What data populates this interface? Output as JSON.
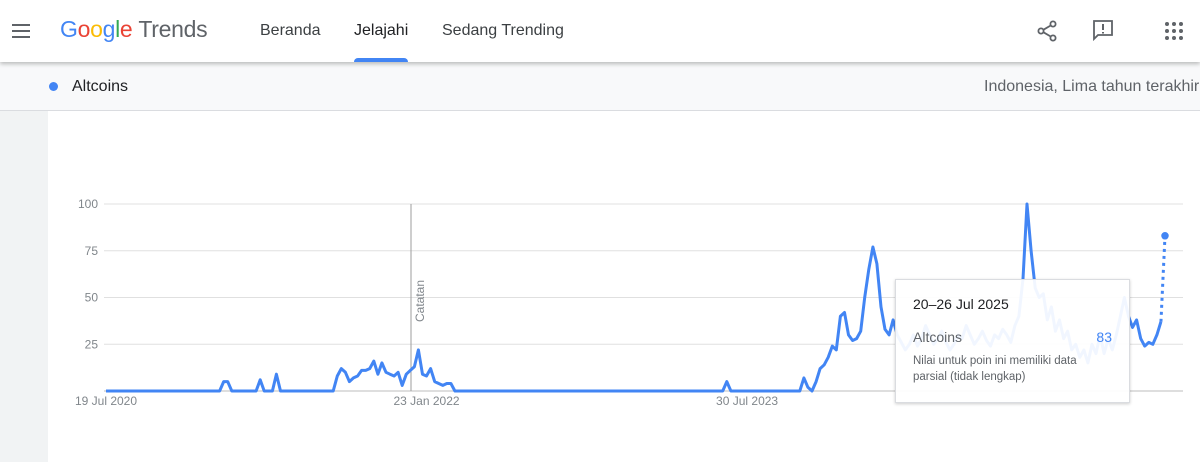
{
  "header": {
    "logo": "Google",
    "product": "Trends",
    "nav": [
      "Beranda",
      "Jelajahi",
      "Sedang Trending"
    ],
    "active_nav": 1
  },
  "subheader": {
    "region": "Indonesia, Lima tahun terakhir"
  },
  "chart_data": {
    "type": "line",
    "categories": [
      "19 Jul 2020",
      null,
      null,
      null,
      null,
      null,
      null,
      null,
      null,
      null,
      null,
      null,
      null,
      null,
      null,
      null,
      null,
      null,
      null,
      null,
      null,
      null,
      null,
      null,
      null,
      null,
      null,
      null,
      null,
      null,
      null,
      null,
      null,
      null,
      null,
      null,
      null,
      null,
      null,
      null,
      null,
      null,
      null,
      null,
      null,
      null,
      null,
      null,
      null,
      null,
      null,
      null,
      null,
      null,
      null,
      null,
      null,
      null,
      null,
      null,
      null,
      null,
      null,
      null,
      null,
      null,
      null,
      null,
      null,
      null,
      null,
      null,
      null,
      null,
      null,
      null,
      null,
      null,
      null,
      "23 Jan 2022",
      null,
      null,
      null,
      null,
      null,
      null,
      null,
      null,
      null,
      null,
      null,
      null,
      null,
      null,
      null,
      null,
      null,
      null,
      null,
      null,
      null,
      null,
      null,
      null,
      null,
      null,
      null,
      null,
      null,
      null,
      null,
      null,
      null,
      null,
      null,
      null,
      null,
      null,
      null,
      null,
      null,
      null,
      null,
      null,
      null,
      null,
      null,
      null,
      null,
      null,
      null,
      null,
      null,
      null,
      null,
      null,
      null,
      null,
      null,
      null,
      null,
      null,
      null,
      null,
      null,
      null,
      null,
      null,
      null,
      null,
      null,
      null,
      null,
      null,
      null,
      null,
      null,
      null,
      "30 Jul 2023",
      null,
      null,
      null,
      null,
      null,
      null,
      null,
      null,
      null,
      null,
      null,
      null,
      null,
      null,
      null,
      null,
      null,
      null,
      null,
      null,
      null,
      null,
      null,
      null,
      null,
      null,
      null,
      null,
      null,
      null,
      null,
      null,
      null,
      null,
      null,
      null,
      null,
      null,
      null,
      null,
      null,
      null,
      null,
      null,
      null,
      null,
      null,
      null,
      null,
      null,
      null,
      null,
      null,
      null,
      null,
      null,
      null,
      null,
      null,
      null,
      null,
      null,
      null,
      null,
      null,
      null,
      null,
      null,
      null,
      null,
      null,
      null,
      null,
      null,
      null,
      null,
      null,
      null,
      null,
      null,
      null,
      null,
      null,
      null,
      null,
      null,
      null,
      null,
      null,
      null,
      null,
      null,
      null,
      null,
      null,
      null,
      null,
      null,
      null,
      null,
      null,
      null,
      null
    ],
    "series": [
      {
        "name": "Altcoins",
        "color": "#4285f4",
        "values": [
          0,
          0,
          0,
          0,
          0,
          0,
          0,
          0,
          0,
          0,
          0,
          0,
          0,
          0,
          0,
          0,
          0,
          0,
          0,
          0,
          0,
          0,
          0,
          0,
          0,
          0,
          0,
          0,
          0,
          5,
          5,
          0,
          0,
          0,
          0,
          0,
          0,
          0,
          6,
          0,
          0,
          0,
          9,
          0,
          0,
          0,
          0,
          0,
          0,
          0,
          0,
          0,
          0,
          0,
          0,
          0,
          0,
          8,
          12,
          10,
          5,
          7,
          8,
          11,
          11,
          12,
          16,
          9,
          15,
          10,
          9,
          8,
          10,
          3,
          9,
          11,
          13,
          22,
          9,
          8,
          12,
          5,
          4,
          3,
          4,
          4,
          0,
          0,
          0,
          0,
          0,
          0,
          0,
          0,
          0,
          0,
          0,
          0,
          0,
          0,
          0,
          0,
          0,
          0,
          0,
          0,
          0,
          0,
          0,
          0,
          0,
          0,
          0,
          0,
          0,
          0,
          0,
          0,
          0,
          0,
          0,
          0,
          0,
          0,
          0,
          0,
          0,
          0,
          0,
          0,
          0,
          0,
          0,
          0,
          0,
          0,
          0,
          0,
          0,
          0,
          0,
          0,
          0,
          0,
          0,
          0,
          0,
          0,
          0,
          0,
          0,
          0,
          0,
          5,
          0,
          0,
          0,
          0,
          0,
          0,
          0,
          0,
          0,
          0,
          0,
          0,
          0,
          0,
          0,
          0,
          0,
          0,
          7,
          2,
          0,
          5,
          12,
          14,
          18,
          24,
          22,
          40,
          42,
          30,
          27,
          28,
          32,
          50,
          65,
          77,
          68,
          45,
          33,
          30,
          38,
          30,
          26,
          22,
          25,
          30,
          24,
          28,
          35,
          30,
          25,
          28,
          32,
          26,
          22,
          25,
          30,
          28,
          35,
          30,
          25,
          28,
          32,
          27,
          24,
          30,
          28,
          33,
          30,
          26,
          35,
          40,
          60,
          100,
          75,
          55,
          50,
          52,
          38,
          45,
          32,
          38,
          28,
          32,
          22,
          25,
          18,
          22,
          15,
          25,
          20,
          30,
          20,
          28,
          22,
          30,
          40,
          50,
          40,
          34,
          38,
          28,
          24,
          26,
          25,
          30,
          37,
          83
        ]
      }
    ],
    "ylim": [
      0,
      100
    ],
    "yticks": [
      25,
      50,
      75,
      100
    ],
    "grid": true,
    "annotation": "Catatan",
    "tooltip": {
      "title": "20–26 Jul 2025",
      "note": "Nilai untuk poin ini memiliki data parsial (tidak lengkap)"
    }
  }
}
